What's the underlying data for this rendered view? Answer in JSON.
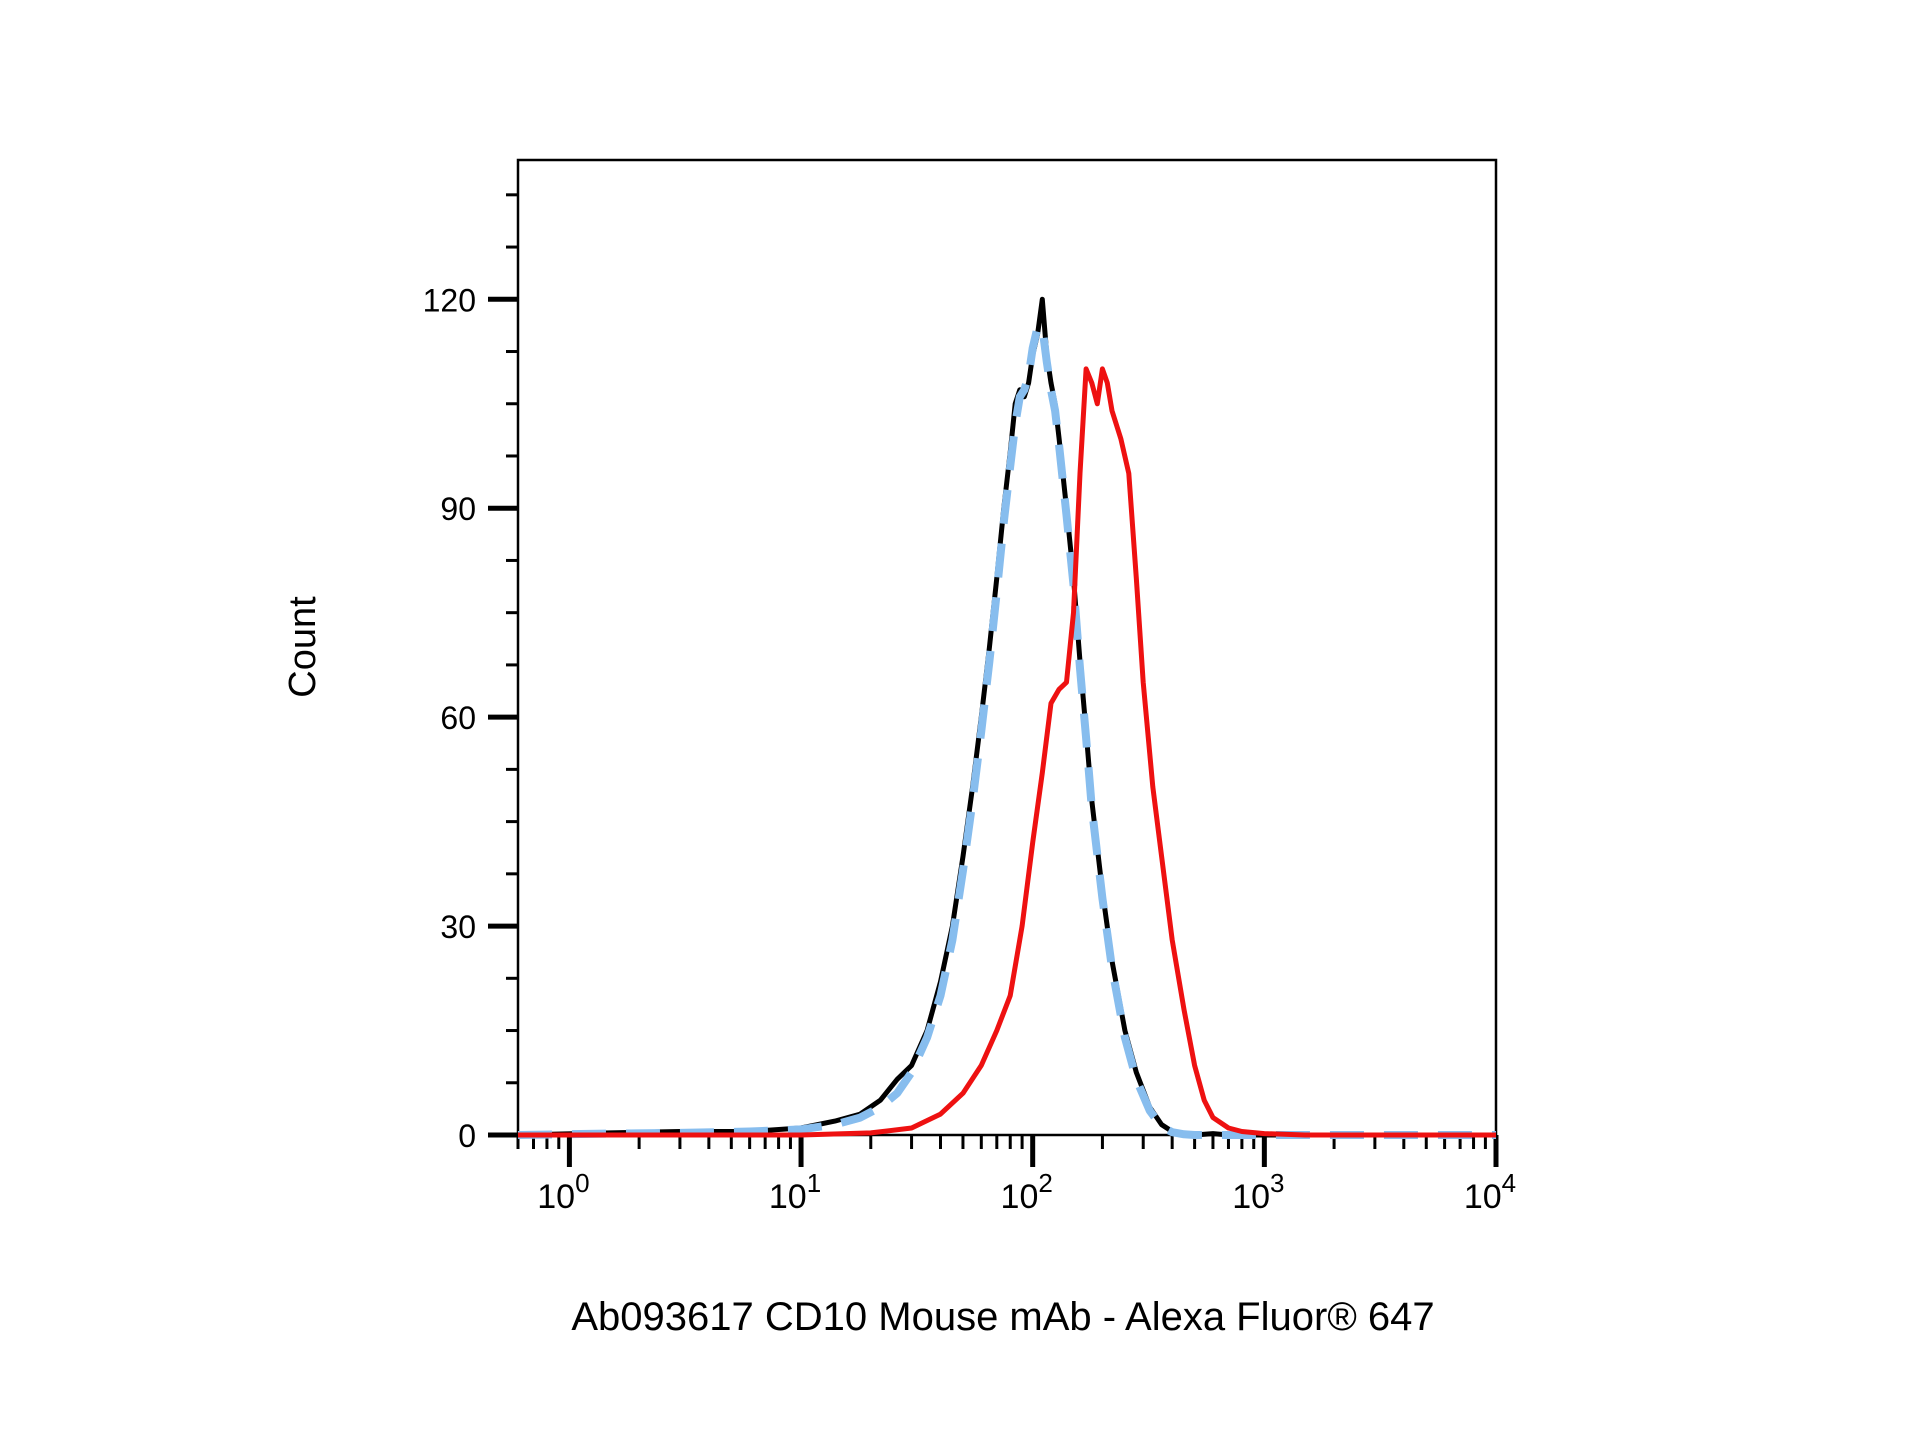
{
  "chart_data": {
    "type": "line",
    "title": "",
    "xlabel": "Ab093617 CD10 Mouse mAb - Alexa Fluor® 647",
    "ylabel": "Count",
    "x_scale": "log",
    "xlim": [
      0.6,
      10000
    ],
    "ylim": [
      0,
      140
    ],
    "grid": false,
    "legend": "none",
    "y_ticks": [
      {
        "value": 0,
        "label": "0"
      },
      {
        "value": 30,
        "label": "30"
      },
      {
        "value": 60,
        "label": "60"
      },
      {
        "value": 90,
        "label": "90"
      },
      {
        "value": 120,
        "label": "120"
      }
    ],
    "x_ticks": [
      {
        "value": 1,
        "base": "10",
        "exp": "0"
      },
      {
        "value": 10,
        "base": "10",
        "exp": "1"
      },
      {
        "value": 100,
        "base": "10",
        "exp": "2"
      },
      {
        "value": 1000,
        "base": "10",
        "exp": "3"
      },
      {
        "value": 10000,
        "base": "10",
        "exp": "4"
      }
    ],
    "series": [
      {
        "color": "#000000",
        "style": "solid",
        "x": [
          0.6,
          1.5,
          3,
          6,
          10,
          14,
          18,
          22,
          26,
          30,
          35,
          40,
          45,
          50,
          55,
          60,
          65,
          70,
          75,
          80,
          84,
          88,
          92,
          96,
          100,
          105,
          110,
          115,
          120,
          125,
          130,
          140,
          150,
          160,
          170,
          180,
          200,
          220,
          250,
          280,
          320,
          360,
          400,
          450,
          500,
          600,
          700,
          800,
          1000,
          2000,
          10000
        ],
        "y": [
          0,
          0.3,
          0.5,
          0.5,
          1,
          2,
          3,
          5,
          8,
          10,
          15,
          22,
          30,
          40,
          50,
          60,
          70,
          80,
          90,
          98,
          105,
          107,
          106,
          108,
          112,
          115,
          120,
          112,
          108,
          105,
          100,
          90,
          80,
          68,
          58,
          48,
          35,
          25,
          15,
          9,
          4,
          1.5,
          0.5,
          0.2,
          0,
          0.2,
          0,
          0,
          0,
          0,
          0
        ]
      },
      {
        "color": "#87bdee",
        "style": "dashed",
        "x": [
          0.6,
          1.5,
          3,
          6,
          10,
          14,
          18,
          22,
          26,
          30,
          35,
          40,
          45,
          50,
          55,
          60,
          65,
          70,
          75,
          80,
          84,
          88,
          92,
          96,
          100,
          105,
          110,
          115,
          120,
          125,
          130,
          140,
          150,
          160,
          170,
          180,
          200,
          220,
          250,
          280,
          320,
          360,
          400,
          450,
          500,
          600,
          700,
          800,
          1000,
          2000,
          10000
        ],
        "y": [
          0,
          0.2,
          0.3,
          0.5,
          0.8,
          1.5,
          2.5,
          4,
          6,
          9,
          14,
          20,
          28,
          38,
          48,
          58,
          68,
          78,
          88,
          96,
          102,
          106,
          107,
          109,
          113,
          116,
          116,
          111,
          107,
          104,
          99,
          89,
          79,
          67,
          57,
          47,
          34,
          24,
          14,
          8,
          3.5,
          1.2,
          0.4,
          0.1,
          0,
          0,
          0,
          0,
          0,
          0,
          0
        ]
      },
      {
        "color": "#ee1111",
        "style": "solid",
        "x": [
          0.6,
          5,
          10,
          20,
          30,
          40,
          50,
          60,
          70,
          80,
          90,
          100,
          110,
          120,
          130,
          140,
          150,
          160,
          170,
          180,
          190,
          200,
          210,
          220,
          240,
          260,
          280,
          300,
          330,
          360,
          400,
          450,
          500,
          550,
          600,
          700,
          800,
          1000,
          1500,
          2000,
          5000,
          10000
        ],
        "y": [
          0,
          0,
          0,
          0.3,
          1,
          3,
          6,
          10,
          15,
          20,
          30,
          42,
          52,
          62,
          64,
          65,
          75,
          95,
          110,
          108,
          105,
          110,
          108,
          104,
          100,
          95,
          80,
          65,
          50,
          40,
          28,
          18,
          10,
          5,
          2.5,
          1,
          0.5,
          0.2,
          0,
          0,
          0,
          0
        ]
      }
    ]
  }
}
